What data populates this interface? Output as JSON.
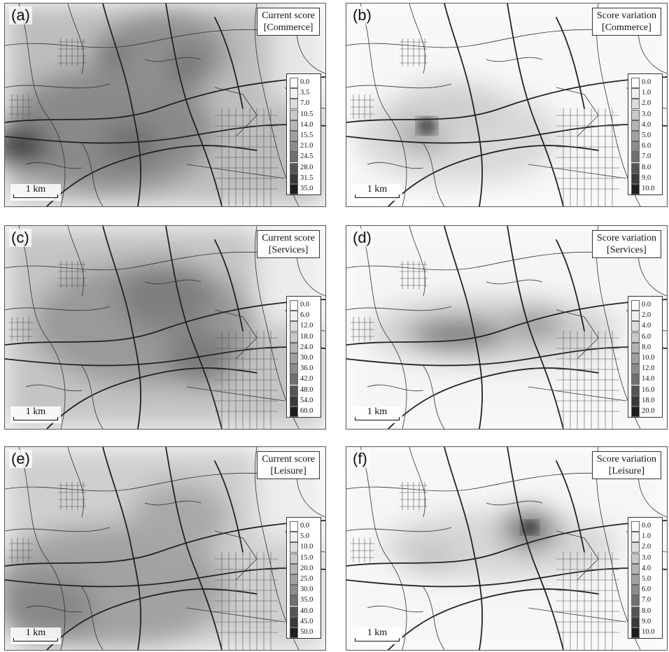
{
  "scale_label": "1 km",
  "panels": [
    {
      "letter": "(a)",
      "title_line1": "Current score",
      "title_line2": "[Commerce]",
      "legend": [
        "0.0",
        "3.5",
        "7.0",
        "10.5",
        "14.0",
        "15.5",
        "21.0",
        "24.5",
        "28.0",
        "31.5",
        "35.0"
      ]
    },
    {
      "letter": "(b)",
      "title_line1": "Score variation",
      "title_line2": "[Commerce]",
      "legend": [
        "0.0",
        "1.0",
        "2.0",
        "3.0",
        "4.0",
        "5.0",
        "6.0",
        "7.0",
        "8.0",
        "9.0",
        "10.0"
      ]
    },
    {
      "letter": "(c)",
      "title_line1": "Current score",
      "title_line2": "[Services]",
      "legend": [
        "0.0",
        "6.0",
        "12.0",
        "18.0",
        "24.0",
        "30.0",
        "36.0",
        "42.0",
        "48.0",
        "54.0",
        "60.0"
      ]
    },
    {
      "letter": "(d)",
      "title_line1": "Score variation",
      "title_line2": "[Services]",
      "legend": [
        "0.0",
        "2.0",
        "4.0",
        "6.0",
        "8.0",
        "10.0",
        "12.0",
        "14.0",
        "16.0",
        "18.0",
        "20.0"
      ]
    },
    {
      "letter": "(e)",
      "title_line1": "Current score",
      "title_line2": "[Leisure]",
      "legend": [
        "0.0",
        "5.0",
        "10.0",
        "15.0",
        "20.0",
        "25.0",
        "30.0",
        "35.0",
        "40.0",
        "45.0",
        "50.0"
      ]
    },
    {
      "letter": "(f)",
      "title_line1": "Score variation",
      "title_line2": "[Leisure]",
      "legend": [
        "0.0",
        "1.0",
        "2.0",
        "3.0",
        "4.0",
        "5.0",
        "6.0",
        "7.0",
        "8.0",
        "9.0",
        "10.0"
      ]
    }
  ],
  "legend_colors": [
    "#ffffff",
    "#f0f0f0",
    "#dcdcdc",
    "#c8c8c8",
    "#b4b4b4",
    "#a0a0a0",
    "#8c8c8c",
    "#707070",
    "#555555",
    "#3a3a3a",
    "#1e1e1e"
  ]
}
